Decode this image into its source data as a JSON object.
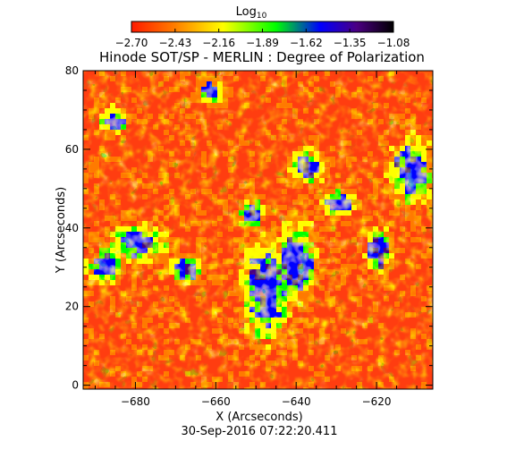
{
  "chart_data": {
    "type": "heatmap",
    "title": "Hinode SOT/SP - MERLIN : Degree of Polarization",
    "xlabel": "X (Arcseconds)",
    "ylabel": "Y (Arcseconds)",
    "xlim": [
      -693,
      -606
    ],
    "ylim": [
      -1,
      80
    ],
    "x_ticks": [
      -680,
      -660,
      -640,
      -620
    ],
    "y_ticks": [
      0,
      20,
      40,
      60,
      80
    ],
    "colorbar": {
      "label": "Log",
      "label_subscript": "10",
      "ticks": [
        -2.7,
        -2.43,
        -2.16,
        -1.89,
        -1.62,
        -1.35,
        -1.08
      ],
      "range": [
        -2.7,
        -1.08
      ],
      "colormap": [
        "#ff1a00",
        "#ff7a00",
        "#ffff00",
        "#00ff00",
        "#0000ff",
        "#4b0082",
        "#000000"
      ]
    },
    "timestamp": "30-Sep-2016 07:22:20.411",
    "grid": false
  }
}
